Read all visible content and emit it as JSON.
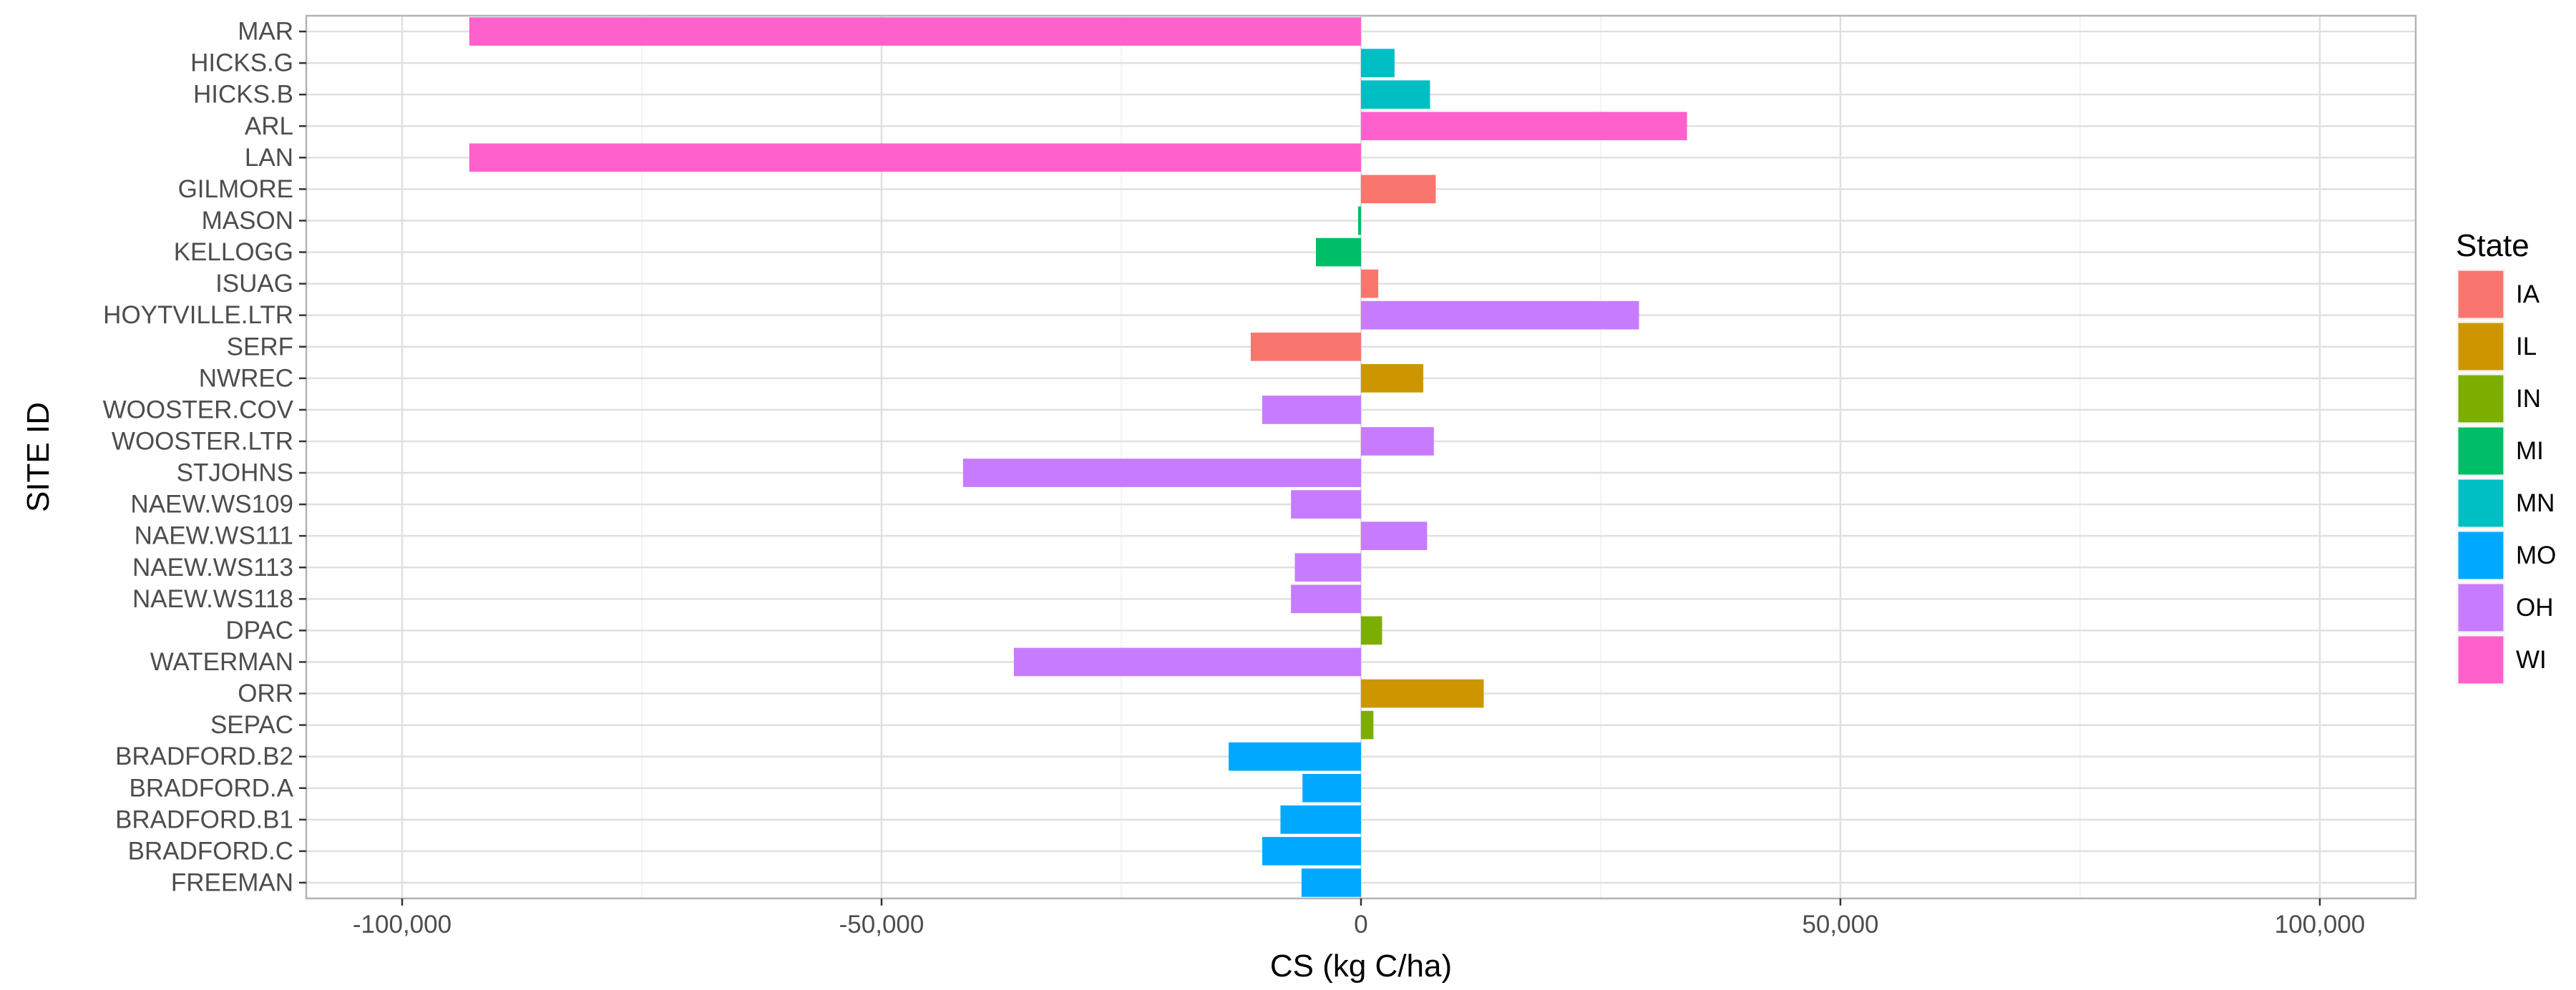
{
  "chart_data": {
    "type": "bar",
    "orientation": "horizontal",
    "xlabel": "CS (kg C/ha)",
    "ylabel": "SITE ID",
    "xlim": [
      -110000,
      110000
    ],
    "xticks": [
      -100000,
      -50000,
      0,
      50000,
      100000
    ],
    "xtick_labels": [
      "-100,000",
      "-50,000",
      "0",
      "50,000",
      "100,000"
    ],
    "grid": true,
    "legend": {
      "title": "State",
      "position": "right",
      "entries": [
        {
          "label": "IA",
          "color": "#F8766D"
        },
        {
          "label": "IL",
          "color": "#CD9600"
        },
        {
          "label": "IN",
          "color": "#7CAE00"
        },
        {
          "label": "MI",
          "color": "#00BE67"
        },
        {
          "label": "MN",
          "color": "#00BFC4"
        },
        {
          "label": "MO",
          "color": "#00A9FF"
        },
        {
          "label": "OH",
          "color": "#C77CFF"
        },
        {
          "label": "WI",
          "color": "#FF61CC"
        }
      ]
    },
    "bars": [
      {
        "site": "MAR",
        "value": -93000,
        "state": "WI"
      },
      {
        "site": "HICKS.G",
        "value": 3500,
        "state": "MN"
      },
      {
        "site": "HICKS.B",
        "value": 7200,
        "state": "MN"
      },
      {
        "site": "ARL",
        "value": 34000,
        "state": "WI"
      },
      {
        "site": "LAN",
        "value": -93000,
        "state": "WI"
      },
      {
        "site": "GILMORE",
        "value": 7800,
        "state": "IA"
      },
      {
        "site": "MASON",
        "value": -300,
        "state": "MI"
      },
      {
        "site": "KELLOGG",
        "value": -4700,
        "state": "MI"
      },
      {
        "site": "ISUAG",
        "value": 1800,
        "state": "IA"
      },
      {
        "site": "HOYTVILLE.LTR",
        "value": 29000,
        "state": "OH"
      },
      {
        "site": "SERF",
        "value": -11500,
        "state": "IA"
      },
      {
        "site": "NWREC",
        "value": 6500,
        "state": "IL"
      },
      {
        "site": "WOOSTER.COV",
        "value": -10300,
        "state": "OH"
      },
      {
        "site": "WOOSTER.LTR",
        "value": 7600,
        "state": "OH"
      },
      {
        "site": "STJOHNS",
        "value": -41500,
        "state": "OH"
      },
      {
        "site": "NAEW.WS109",
        "value": -7300,
        "state": "OH"
      },
      {
        "site": "NAEW.WS111",
        "value": 6900,
        "state": "OH"
      },
      {
        "site": "NAEW.WS113",
        "value": -6900,
        "state": "OH"
      },
      {
        "site": "NAEW.WS118",
        "value": -7300,
        "state": "OH"
      },
      {
        "site": "DPAC",
        "value": 2200,
        "state": "IN"
      },
      {
        "site": "WATERMAN",
        "value": -36200,
        "state": "OH"
      },
      {
        "site": "ORR",
        "value": 12800,
        "state": "IL"
      },
      {
        "site": "SEPAC",
        "value": 1300,
        "state": "IN"
      },
      {
        "site": "BRADFORD.B2",
        "value": -13800,
        "state": "MO"
      },
      {
        "site": "BRADFORD.A",
        "value": -6100,
        "state": "MO"
      },
      {
        "site": "BRADFORD.B1",
        "value": -8400,
        "state": "MO"
      },
      {
        "site": "BRADFORD.C",
        "value": -10300,
        "state": "MO"
      },
      {
        "site": "FREEMAN",
        "value": -6200,
        "state": "MO"
      }
    ]
  }
}
